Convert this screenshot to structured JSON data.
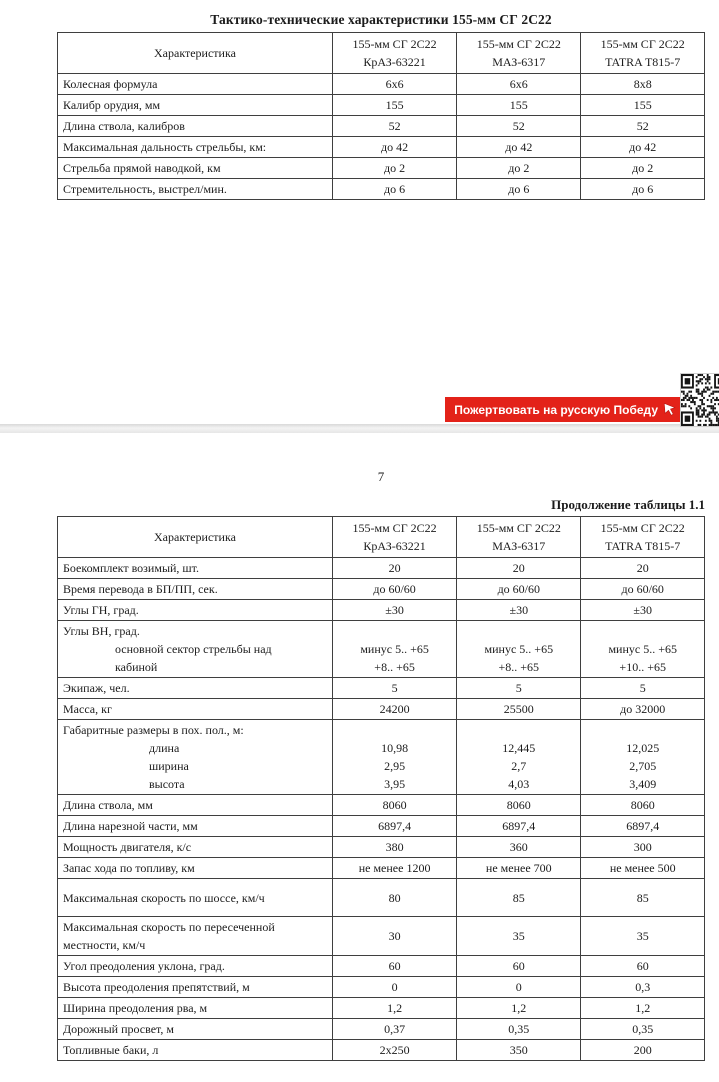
{
  "page1": {
    "title": "Тактико-технические характеристики 155-мм СГ 2С22",
    "table": {
      "header": {
        "label": "Характеристика",
        "columns": [
          [
            "155-мм СГ 2С22",
            "КрАЗ-63221"
          ],
          [
            "155-мм СГ 2С22",
            "МАЗ-6317"
          ],
          [
            "155-мм СГ 2С22",
            "TATRA T815-7"
          ]
        ]
      },
      "rows": [
        {
          "label": [
            {
              "t": "Колесная формула"
            }
          ],
          "cells": [
            [
              "6х6"
            ],
            [
              "6х6"
            ],
            [
              "8х8"
            ]
          ]
        },
        {
          "label": [
            {
              "t": "Калибр орудия, мм"
            }
          ],
          "cells": [
            [
              "155"
            ],
            [
              "155"
            ],
            [
              "155"
            ]
          ]
        },
        {
          "label": [
            {
              "t": "Длина ствола, калибров"
            }
          ],
          "cells": [
            [
              "52"
            ],
            [
              "52"
            ],
            [
              "52"
            ]
          ]
        },
        {
          "label": [
            {
              "t": "Максимальная дальность стрельбы, км:"
            }
          ],
          "cells": [
            [
              "до 42"
            ],
            [
              "до 42"
            ],
            [
              "до 42"
            ]
          ]
        },
        {
          "label": [
            {
              "t": "Стрельба прямой наводкой, км"
            }
          ],
          "cells": [
            [
              "до 2"
            ],
            [
              "до 2"
            ],
            [
              "до 2"
            ]
          ]
        },
        {
          "label": [
            {
              "t": "Стремительность, выстрел/мин."
            }
          ],
          "cells": [
            [
              "до 6"
            ],
            [
              "до 6"
            ],
            [
              "до 6"
            ]
          ]
        }
      ]
    }
  },
  "banner": {
    "label": "Пожертвовать на русскую Победу",
    "bg_color": "#e32219",
    "text_color": "#ffffff"
  },
  "icons": {
    "cursor": "pointer-cursor-icon",
    "qr": "qr-code"
  },
  "page2": {
    "page_number": "7",
    "continuation": "Продолжение таблицы 1.1",
    "table": {
      "header": {
        "label": "Характеристика",
        "columns": [
          [
            "155-мм СГ 2С22",
            "КрАЗ-63221"
          ],
          [
            "155-мм СГ 2С22",
            "МАЗ-6317"
          ],
          [
            "155-мм СГ 2С22",
            "TATRA T815-7"
          ]
        ]
      },
      "rows": [
        {
          "label": [
            {
              "t": "Боекомплект возимый, шт."
            }
          ],
          "cells": [
            [
              "20"
            ],
            [
              "20"
            ],
            [
              "20"
            ]
          ]
        },
        {
          "label": [
            {
              "t": "Время перевода в БП/ПП, сек."
            }
          ],
          "cells": [
            [
              "до 60/60"
            ],
            [
              "до 60/60"
            ],
            [
              "до 60/60"
            ]
          ]
        },
        {
          "label": [
            {
              "t": "Углы ГН, град."
            }
          ],
          "cells": [
            [
              "±30"
            ],
            [
              "±30"
            ],
            [
              "±30"
            ]
          ]
        },
        {
          "label": [
            {
              "t": "Углы ВН, град."
            },
            {
              "t": "основной сектор стрельбы над",
              "ind": 1
            },
            {
              "t": "кабиной",
              "ind": 1
            }
          ],
          "cells": [
            [
              "",
              "минус 5.. +65",
              "+8.. +65"
            ],
            [
              "",
              "минус 5.. +65",
              "+8.. +65"
            ],
            [
              "",
              "минус 5.. +65",
              "+10.. +65"
            ]
          ]
        },
        {
          "label": [
            {
              "t": "Экипаж, чел."
            }
          ],
          "cells": [
            [
              "5"
            ],
            [
              "5"
            ],
            [
              "5"
            ]
          ]
        },
        {
          "label": [
            {
              "t": "Масса, кг"
            }
          ],
          "cells": [
            [
              "24200"
            ],
            [
              "25500"
            ],
            [
              "до 32000"
            ]
          ]
        },
        {
          "label": [
            {
              "t": "Габаритные размеры в пох. пол., м:"
            },
            {
              "t": "длина",
              "ind": 2
            },
            {
              "t": "ширина",
              "ind": 2
            },
            {
              "t": "высота",
              "ind": 2
            }
          ],
          "cells": [
            [
              "",
              "10,98",
              "2,95",
              "3,95"
            ],
            [
              "",
              "12,445",
              "2,7",
              "4,03"
            ],
            [
              "",
              "12,025",
              "2,705",
              "3,409"
            ]
          ]
        },
        {
          "label": [
            {
              "t": "Длина ствола, мм"
            }
          ],
          "cells": [
            [
              "8060"
            ],
            [
              "8060"
            ],
            [
              "8060"
            ]
          ]
        },
        {
          "label": [
            {
              "t": "Длина нарезной части, мм"
            }
          ],
          "cells": [
            [
              "6897,4"
            ],
            [
              "6897,4"
            ],
            [
              "6897,4"
            ]
          ]
        },
        {
          "label": [
            {
              "t": "Мощность двигателя, к/с"
            }
          ],
          "cells": [
            [
              "380"
            ],
            [
              "360"
            ],
            [
              "300"
            ]
          ]
        },
        {
          "label": [
            {
              "t": "Запас хода по топливу, км"
            }
          ],
          "cells": [
            [
              "не менее 1200"
            ],
            [
              "не менее 700"
            ],
            [
              "не менее 500"
            ]
          ]
        },
        {
          "label": [
            {
              "t": "Максимальная скорость по шоссе, км/ч"
            }
          ],
          "cells": [
            [
              "80"
            ],
            [
              "85"
            ],
            [
              "85"
            ]
          ],
          "middle": true,
          "h": 38
        },
        {
          "label": [
            {
              "t": "Максимальная скорость по пересеченной"
            },
            {
              "t": "местности, км/ч"
            }
          ],
          "cells": [
            [
              "30"
            ],
            [
              "35"
            ],
            [
              "35"
            ]
          ],
          "middle": true,
          "h": 38
        },
        {
          "label": [
            {
              "t": "Угол преодоления уклона, град."
            }
          ],
          "cells": [
            [
              "60"
            ],
            [
              "60"
            ],
            [
              "60"
            ]
          ]
        },
        {
          "label": [
            {
              "t": "Высота преодоления препятствий, м"
            }
          ],
          "cells": [
            [
              "0"
            ],
            [
              "0"
            ],
            [
              "0,3"
            ]
          ]
        },
        {
          "label": [
            {
              "t": "Ширина преодоления рва, м"
            }
          ],
          "cells": [
            [
              "1,2"
            ],
            [
              "1,2"
            ],
            [
              "1,2"
            ]
          ]
        },
        {
          "label": [
            {
              "t": "Дорожный просвет, м"
            }
          ],
          "cells": [
            [
              "0,37"
            ],
            [
              "0,35"
            ],
            [
              "0,35"
            ]
          ]
        },
        {
          "label": [
            {
              "t": "Топливные баки, л"
            }
          ],
          "cells": [
            [
              "2х250"
            ],
            [
              "350"
            ],
            [
              "200"
            ]
          ]
        }
      ]
    }
  }
}
